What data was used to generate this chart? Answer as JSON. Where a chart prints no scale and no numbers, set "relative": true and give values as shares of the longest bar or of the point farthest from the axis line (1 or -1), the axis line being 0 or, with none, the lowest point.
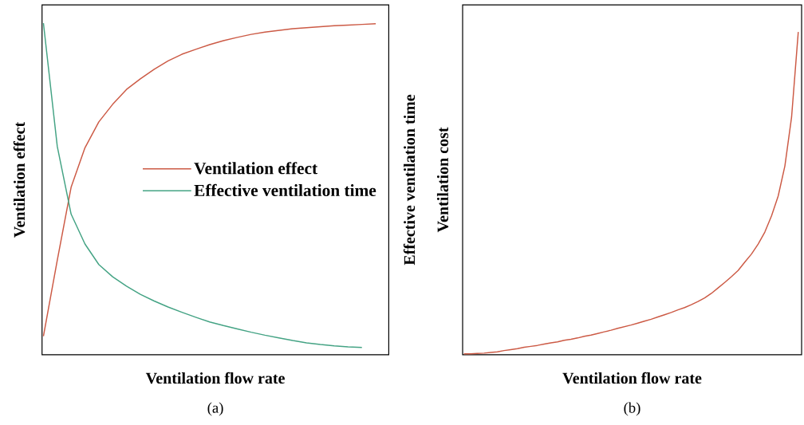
{
  "chart_data": [
    {
      "type": "line",
      "relative": true,
      "xlabel": "Ventilation flow rate",
      "ylabel": "Ventilation effect",
      "y2label": "Effective ventilation time",
      "legend": "right",
      "annotations": [
        "(a)"
      ],
      "categories": [
        null,
        null,
        null,
        null,
        null,
        null,
        null,
        null,
        null,
        null,
        null,
        null,
        null,
        null,
        null,
        null,
        null,
        null,
        null,
        null,
        null,
        null,
        null,
        null,
        null
      ],
      "series": [
        {
          "name": "Ventilation effect",
          "color": "#cc5a45",
          "values": [
            0.056,
            0.285,
            0.505,
            0.624,
            0.702,
            0.755,
            0.8,
            0.832,
            0.861,
            0.886,
            0.906,
            0.921,
            0.935,
            0.947,
            0.957,
            0.966,
            0.973,
            0.978,
            0.983,
            0.986,
            0.989,
            0.992,
            0.994,
            0.996,
            0.998
          ]
        },
        {
          "name": "Effective ventilation time",
          "color": "#44a384",
          "values": [
            1.0,
            0.628,
            0.424,
            0.334,
            0.272,
            0.235,
            0.207,
            0.182,
            0.162,
            0.144,
            0.128,
            0.113,
            0.099,
            0.088,
            0.078,
            0.068,
            0.059,
            0.051,
            0.043,
            0.036,
            0.031,
            0.027,
            0.024,
            0.022,
            null
          ]
        }
      ]
    },
    {
      "type": "line",
      "relative": true,
      "xlabel": "Ventilation flow rate",
      "ylabel": "Ventilation cost",
      "annotations": [
        "(b)"
      ],
      "color": "#cc5a45",
      "categories": [
        null,
        null,
        null,
        null,
        null,
        null,
        null,
        null,
        null,
        null,
        null,
        null,
        null,
        null,
        null,
        null,
        null,
        null,
        null,
        null,
        null,
        null,
        null,
        null,
        null,
        null,
        null,
        null,
        null,
        null,
        null,
        null,
        null,
        null,
        null,
        null,
        null,
        null,
        null,
        null,
        null,
        null,
        null,
        null,
        null,
        null,
        null,
        null,
        null,
        null,
        null
      ],
      "values": [
        0.003,
        0.003,
        0.004,
        0.005,
        0.007,
        0.009,
        0.013,
        0.016,
        0.019,
        0.023,
        0.026,
        0.029,
        0.033,
        0.037,
        0.04,
        0.045,
        0.048,
        0.052,
        0.057,
        0.061,
        0.066,
        0.071,
        0.076,
        0.082,
        0.087,
        0.092,
        0.098,
        0.104,
        0.11,
        0.117,
        0.124,
        0.131,
        0.139,
        0.146,
        0.155,
        0.165,
        0.176,
        0.19,
        0.207,
        0.224,
        0.242,
        0.261,
        0.287,
        0.312,
        0.343,
        0.38,
        0.43,
        0.492,
        0.585,
        0.736,
        1.0
      ]
    }
  ]
}
